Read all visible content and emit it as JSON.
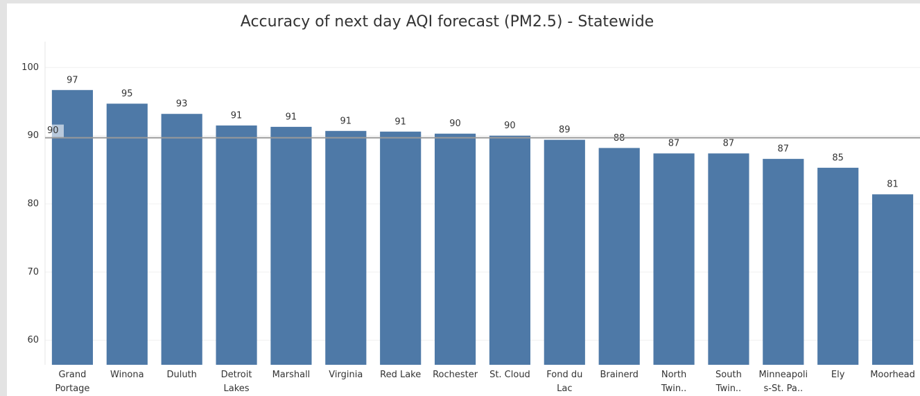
{
  "chart_data": {
    "type": "bar",
    "title": "Accuracy of next day AQI forecast (PM2.5) - Statewide",
    "categories": [
      "Grand Portage",
      "Winona",
      "Duluth",
      "Detroit Lakes",
      "Marshall",
      "Virginia",
      "Red Lake",
      "Rochester",
      "St. Cloud",
      "Fond du Lac",
      "Brainerd",
      "North Twin..",
      "South Twin..",
      "Minneapolis-St. Pa..",
      "Ely",
      "Moorhead"
    ],
    "values": [
      96.7,
      94.7,
      93.2,
      91.5,
      91.3,
      90.7,
      90.6,
      90.3,
      90.0,
      89.4,
      88.2,
      87.4,
      87.4,
      86.6,
      85.3,
      81.4
    ],
    "value_labels": [
      "97",
      "95",
      "93",
      "91",
      "91",
      "91",
      "91",
      "90",
      "90",
      "89",
      "88",
      "87",
      "87",
      "87",
      "85",
      "81"
    ],
    "color": "#4e79a7",
    "ylim": [
      56.4,
      103.8
    ],
    "yticks": [
      60,
      70,
      80,
      90,
      100
    ],
    "grid": true,
    "reference_line": {
      "value": 89.7,
      "label": "90"
    }
  }
}
